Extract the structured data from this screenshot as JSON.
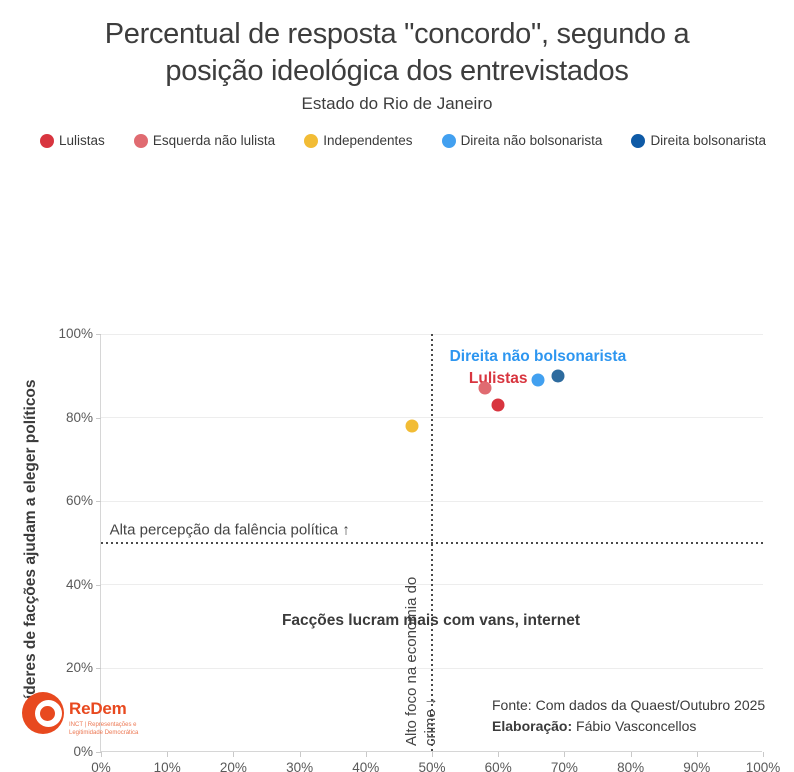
{
  "header": {
    "title": "Percentual de resposta \"concordo\", segundo a\nposição ideológica dos entrevistados",
    "subtitle": "Estado do Rio de Janeiro"
  },
  "chart_data": {
    "type": "scatter",
    "title": "Percentual de resposta \"concordo\", segundo a posição ideológica dos entrevistados",
    "subtitle": "Estado do Rio de Janeiro",
    "xlabel": "Facções lucram mais com vans, internet",
    "ylabel": "Líderes de facções ajudam a eleger políticos",
    "xlim": [
      0,
      100
    ],
    "ylim": [
      0,
      100
    ],
    "x_ticks": [
      0,
      10,
      20,
      30,
      40,
      50,
      60,
      70,
      80,
      90,
      100
    ],
    "y_ticks": [
      0,
      20,
      40,
      60,
      80,
      100
    ],
    "tick_suffix": "%",
    "grid": "horizontal",
    "legend_position": "top",
    "series": [
      {
        "name": "Lulistas",
        "color": "#d8353f",
        "x": 60,
        "y": 83
      },
      {
        "name": "Esquerda não lulista",
        "color": "#e06b71",
        "x": 58,
        "y": 87
      },
      {
        "name": "Independentes",
        "color": "#f2bc35",
        "x": 47,
        "y": 78
      },
      {
        "name": "Direita não bolsonarista",
        "color": "#42a0f0",
        "x": 66,
        "y": 89
      },
      {
        "name": "Direita bolsonarista",
        "color": "#2e6b9e",
        "legend_color": "#0e5aa6",
        "x": 69,
        "y": 90
      }
    ],
    "reference_lines": {
      "x": 50,
      "y": 50
    },
    "annotations": [
      {
        "text": "Direita não bolsonarista",
        "color": "#2d96f0",
        "x": 66,
        "y": 94.6,
        "style": "point-label"
      },
      {
        "text": "Lulistas",
        "color": "#d8353f",
        "x": 60,
        "y": 89.2,
        "style": "point-label"
      },
      {
        "text": "Alta percepção da falência política ↑",
        "color": "#454545",
        "x": 1.3,
        "y": 53.2,
        "style": "quadrant-left"
      },
      {
        "text": "Alto foco na economia do\ncrime ↓",
        "color": "#454545",
        "x": 50,
        "y": 0,
        "style": "quadrant-rotated"
      }
    ]
  },
  "footer": {
    "logo_name": "ReDem",
    "logo_tagline": "INCT | Representações e\nLegitimidade Democrática",
    "source_prefix": "Fonte:",
    "source_text": " Com dados da Quaest/Outubro 2025",
    "elaboration_prefix": "Elaboração:",
    "elaboration_text": " Fábio Vasconcellos"
  }
}
